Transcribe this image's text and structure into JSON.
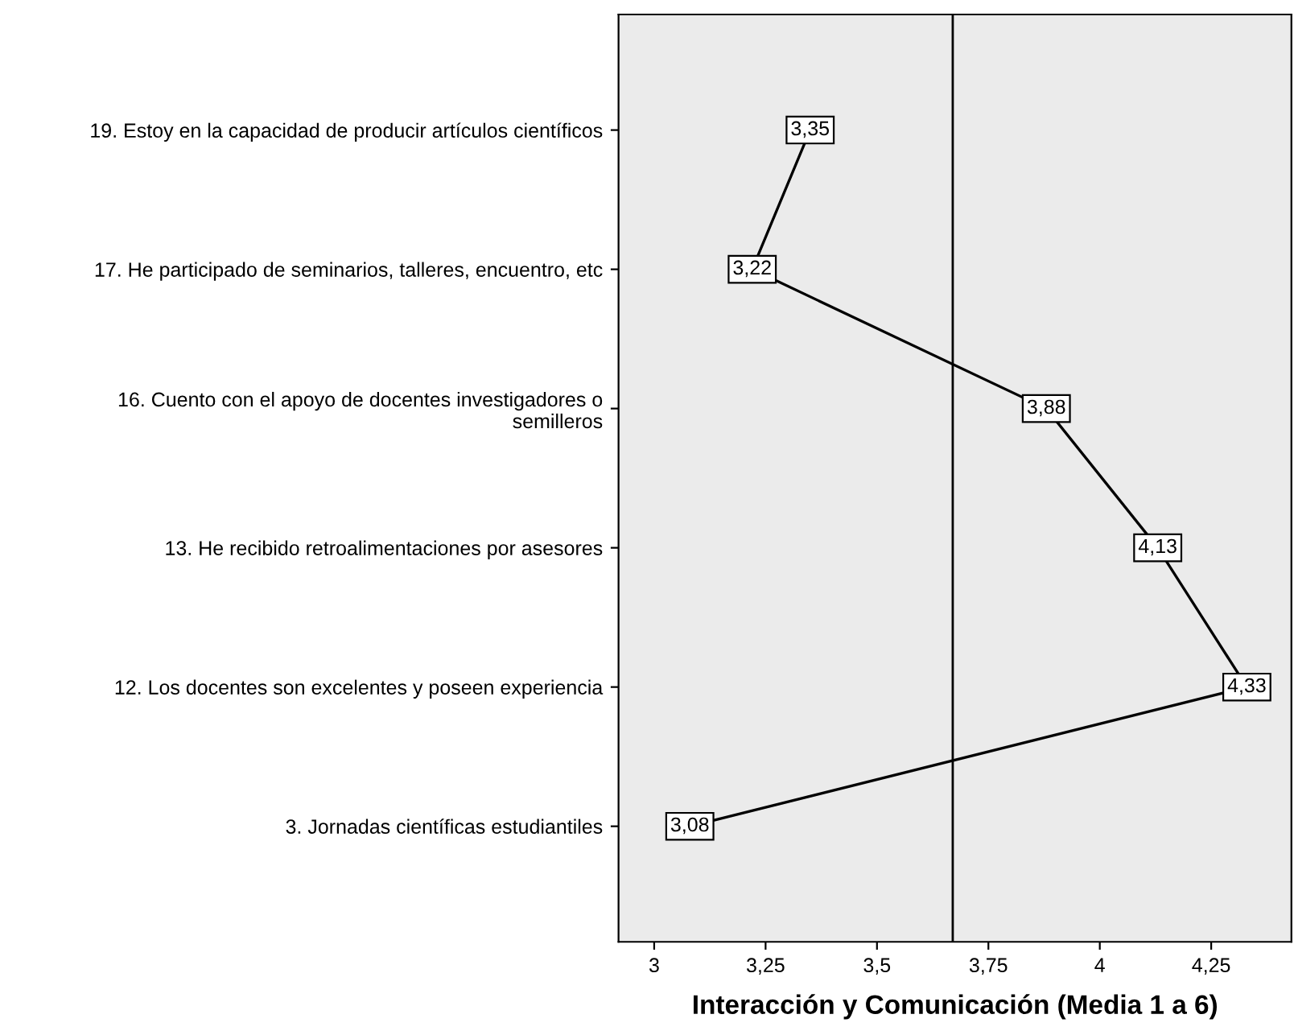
{
  "chart_data": {
    "type": "line",
    "orientation": "horizontal",
    "xlabel": "Interacción y Comunicación (Media 1 a 6)",
    "categories": [
      "19. Estoy en la capacidad de producir artículos científicos",
      "17. He participado de seminarios, talleres, encuentro, etc",
      "16. Cuento con el apoyo de docentes investigadores o\nsemilleros",
      "13. He recibido retroalimentaciones por asesores",
      "12. Los docentes son excelentes y poseen experiencia",
      "3. Jornadas científicas estudiantiles"
    ],
    "series": [
      {
        "color": "#000000",
        "values": [
          3.35,
          3.22,
          3.88,
          4.13,
          4.33,
          3.08
        ],
        "value_labels": [
          "3,35",
          "3,22",
          "3,88",
          "4,13",
          "4,33",
          "3,08"
        ]
      }
    ],
    "xlim": [
      2.92,
      4.43
    ],
    "xticks": [
      3,
      {
        "value": 3.25,
        "label": "3,25"
      },
      {
        "value": 3.5,
        "label": "3,5"
      },
      {
        "value": 3.75,
        "label": "3,75"
      },
      4,
      {
        "value": 4.25,
        "label": "4,25"
      }
    ],
    "ref_lines": [
      {
        "axis": "x",
        "value": 3.67,
        "color": "#000000"
      }
    ],
    "grid": false,
    "legend": false,
    "marker": "square",
    "line_style": "solid"
  }
}
